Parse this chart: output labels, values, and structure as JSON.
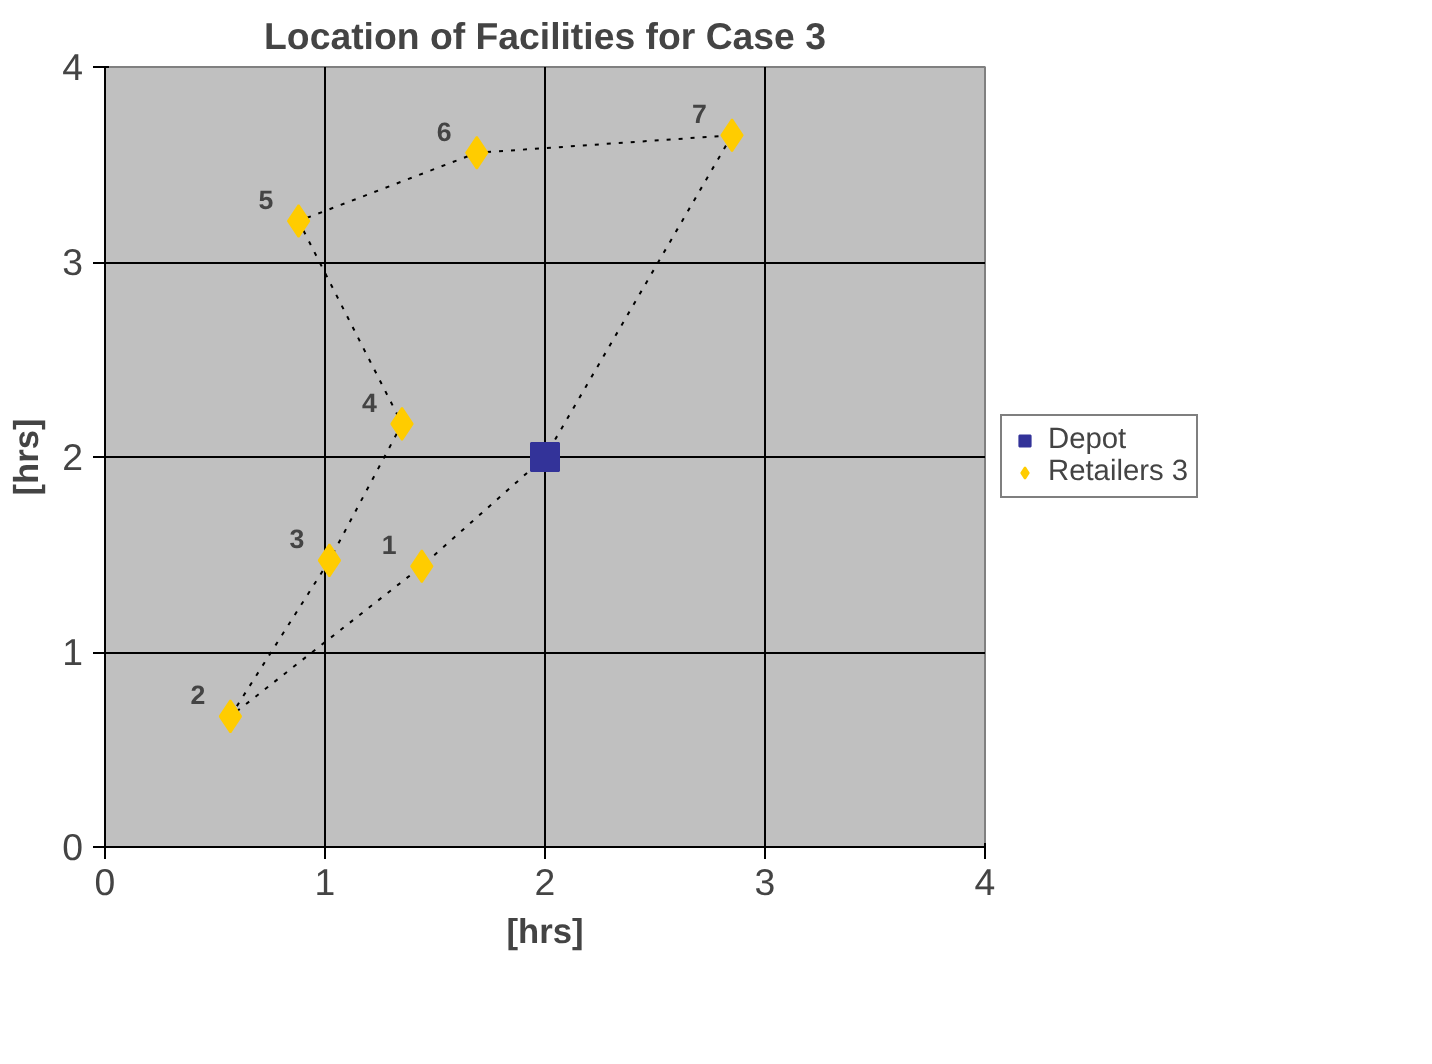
{
  "chart_data": {
    "type": "scatter",
    "title": "Location of Facilities for Case 3",
    "xlabel": "[hrs]",
    "ylabel": "[hrs]",
    "xlim": [
      0,
      4
    ],
    "ylim": [
      0,
      4
    ],
    "xticks": [
      0,
      1,
      2,
      3,
      4
    ],
    "yticks": [
      0,
      1,
      2,
      3,
      4
    ],
    "grid": true,
    "legend": "right",
    "series": [
      {
        "type": "line",
        "line_style": "dotted",
        "marker": "none",
        "color": "#000000",
        "x": [
          2,
          1.44,
          0.57,
          1.02,
          1.35,
          0.88,
          1.69,
          2.85
        ],
        "values": [
          2,
          1.44,
          0.67,
          1.47,
          2.17,
          3.21,
          3.56,
          3.65
        ]
      },
      {
        "type": "line",
        "line_style": "dotted",
        "marker": "none",
        "color": "#000000",
        "x": [
          2.85,
          2
        ],
        "values": [
          3.65,
          2
        ]
      },
      {
        "name": "Depot",
        "marker": "square",
        "color": "#333399",
        "x": [
          2
        ],
        "values": [
          2
        ]
      },
      {
        "name": "Retailers 3",
        "marker": "diamond",
        "color": "#ffcc00",
        "x": [
          1.44,
          0.57,
          1.02,
          1.35,
          0.88,
          1.69,
          2.85
        ],
        "values": [
          1.44,
          0.67,
          1.47,
          2.17,
          3.21,
          3.56,
          3.65
        ]
      }
    ],
    "annotations": [
      {
        "text": "1",
        "x": 1.44,
        "y": 1.44
      },
      {
        "text": "2",
        "x": 0.57,
        "y": 0.67
      },
      {
        "text": "3",
        "x": 1.02,
        "y": 1.47
      },
      {
        "text": "4",
        "x": 1.35,
        "y": 2.17
      },
      {
        "text": "5",
        "x": 0.88,
        "y": 3.21
      },
      {
        "text": "6",
        "x": 1.69,
        "y": 3.56
      },
      {
        "text": "7",
        "x": 2.85,
        "y": 3.65
      }
    ]
  }
}
